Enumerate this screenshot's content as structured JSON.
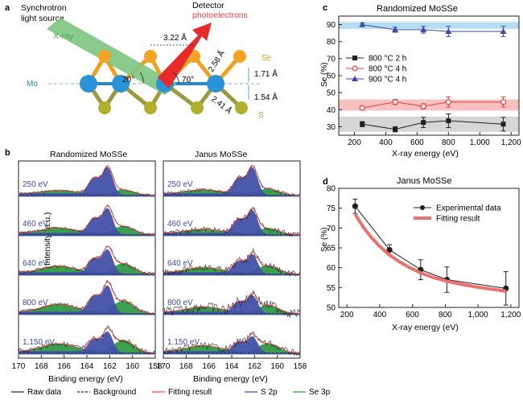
{
  "panel_a": {
    "letter": "a",
    "source_line1": "Synchrotron",
    "source_line2": "light source",
    "xray": "X-ray",
    "detector": "Detector",
    "photoelectrons": "photoelectrons",
    "dist_top": "3.22 Å",
    "dist_diag1": "2.58 Å",
    "dist_diag2": "2.41 Å",
    "dist_up": "1.71 Å",
    "dist_down": "1.54 Å",
    "angle_left": "20°",
    "angle_right": "70°",
    "mo": "Mo",
    "se": "Se",
    "s": "S"
  },
  "panel_b": {
    "letter": "b",
    "left_title": "Randomized MoSSe",
    "right_title": "Janus MoSSe",
    "ylabel": "Intensity (a.u.)",
    "xlabel": "Binding energy (eV)",
    "xticks": [
      "170",
      "168",
      "166",
      "164",
      "162",
      "160",
      "158"
    ],
    "energies": [
      "250 eV",
      "460 eV",
      "640 eV",
      "800 eV",
      "1,150 eV"
    ],
    "legend": [
      {
        "label": "Raw data",
        "color": "#231f20",
        "dash": false
      },
      {
        "label": "Background",
        "color": "#231f20",
        "dash": true
      },
      {
        "label": "Fitting result",
        "color": "#e8413a",
        "dash": false
      },
      {
        "label": "S 2p",
        "color": "#3b4aa7",
        "dash": false
      },
      {
        "label": "Se 3p",
        "color": "#1e9a3e",
        "dash": false
      }
    ]
  },
  "chart_data": [
    {
      "panel": "c",
      "type": "scatter",
      "title": "Randomized MoSSe",
      "xlabel": "X-ray energy (eV)",
      "ylabel": "Se (%)",
      "xlim": [
        100,
        1250
      ],
      "ylim": [
        25,
        95
      ],
      "xticks": [
        "200",
        "400",
        "600",
        "800",
        "1,000",
        "1,200"
      ],
      "yticks": [
        "30",
        "40",
        "50",
        "60",
        "70",
        "80",
        "90"
      ],
      "x": [
        250,
        460,
        640,
        800,
        1150
      ],
      "series": [
        {
          "name": "800 °C 2 h",
          "color": "#231f20",
          "marker": "square",
          "values": [
            31.5,
            28.5,
            32.5,
            33.5,
            31.5
          ],
          "errors": [
            1.5,
            1.5,
            3,
            4,
            4
          ],
          "band": [
            27,
            36
          ],
          "band_color": "#cfcfcf"
        },
        {
          "name": "800 °C 4 h",
          "color": "#e8413a",
          "marker": "circle",
          "values": [
            41,
            44.5,
            42,
            44.5,
            44.5
          ],
          "errors": [
            1,
            1.5,
            1.5,
            3,
            3
          ],
          "band": [
            39.5,
            46
          ],
          "band_color": "#f6b6b6"
        },
        {
          "name": "900 °C 4 h",
          "color": "#3b4aa7",
          "marker": "triangle",
          "values": [
            90,
            87,
            87,
            86,
            86
          ],
          "errors": [
            1,
            1.5,
            2,
            3,
            3
          ],
          "band": [
            87.5,
            91.5
          ],
          "band_color": "#a9d8f0"
        }
      ]
    },
    {
      "panel": "d",
      "type": "line",
      "title": "Janus MoSSe",
      "xlabel": "X-ray energy (eV)",
      "ylabel": "Se (%)",
      "xlim": [
        150,
        1250
      ],
      "ylim": [
        50,
        80
      ],
      "xticks": [
        "200",
        "400",
        "600",
        "800",
        "1,000",
        "1,200"
      ],
      "yticks": [
        "50",
        "55",
        "60",
        "65",
        "70",
        "75",
        "80"
      ],
      "series": [
        {
          "name": "Experimental data",
          "color": "#231f20",
          "x": [
            250,
            460,
            650,
            810,
            1170
          ],
          "values": [
            75.5,
            64.5,
            59.5,
            57,
            54.8
          ],
          "errors": [
            1.8,
            1.3,
            2.5,
            3.2,
            4.2
          ]
        },
        {
          "name": "Fitting result",
          "color": "#ec7070",
          "x": [
            250,
            300,
            350,
            400,
            460,
            520,
            580,
            650,
            730,
            810,
            900,
            1000,
            1100,
            1170
          ],
          "values": [
            73.5,
            70.2,
            67.6,
            65.4,
            63.2,
            61.5,
            60.1,
            58.7,
            57.5,
            56.6,
            55.8,
            55.1,
            54.5,
            54.1
          ]
        }
      ]
    }
  ],
  "panel_c": {
    "letter": "c"
  },
  "panel_d": {
    "letter": "d"
  }
}
